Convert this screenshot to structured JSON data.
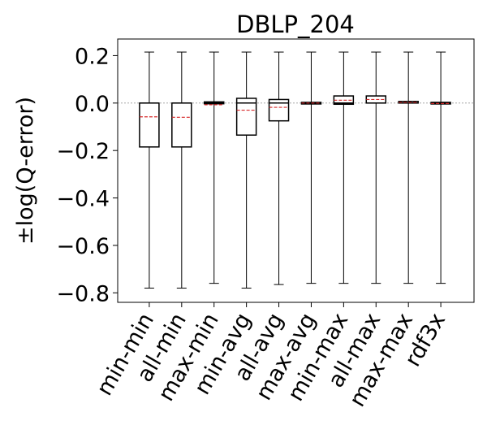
{
  "chart_data": {
    "type": "box",
    "title": "DBLP_204",
    "xlabel": "",
    "ylabel": "±log(Q-error)",
    "ylim": [
      -0.84,
      0.27
    ],
    "yticks": [
      0.2,
      0.0,
      -0.2,
      -0.4,
      -0.6,
      -0.8
    ],
    "ytick_labels": [
      "0.2",
      "0.0",
      "−0.2",
      "−0.4",
      "−0.6",
      "−0.8"
    ],
    "reference_line": 0.0,
    "grid": false,
    "categories": [
      "min-min",
      "all-min",
      "max-min",
      "min-avg",
      "all-avg",
      "max-avg",
      "min-max",
      "all-max",
      "max-max",
      "rdf3x"
    ],
    "boxes": [
      {
        "category": "min-min",
        "whisker_low": -0.78,
        "q1": -0.185,
        "median": -0.0,
        "q3": 0.0,
        "mean": -0.058,
        "whisker_high": 0.215
      },
      {
        "category": "all-min",
        "whisker_low": -0.78,
        "q1": -0.185,
        "median": -0.0,
        "q3": 0.0,
        "mean": -0.06,
        "whisker_high": 0.215
      },
      {
        "category": "max-min",
        "whisker_low": -0.76,
        "q1": -0.003,
        "median": 0.0,
        "q3": 0.005,
        "mean": -0.007,
        "whisker_high": 0.215
      },
      {
        "category": "min-avg",
        "whisker_low": -0.78,
        "q1": -0.135,
        "median": 0.0,
        "q3": 0.02,
        "mean": -0.03,
        "whisker_high": 0.215
      },
      {
        "category": "all-avg",
        "whisker_low": -0.765,
        "q1": -0.075,
        "median": 0.0,
        "q3": 0.015,
        "mean": -0.018,
        "whisker_high": 0.215
      },
      {
        "category": "max-avg",
        "whisker_low": -0.76,
        "q1": -0.002,
        "median": 0.0,
        "q3": 0.003,
        "mean": 0.0,
        "whisker_high": 0.215
      },
      {
        "category": "min-max",
        "whisker_low": -0.76,
        "q1": -0.005,
        "median": 0.0,
        "q3": 0.03,
        "mean": 0.012,
        "whisker_high": 0.215
      },
      {
        "category": "all-max",
        "whisker_low": -0.76,
        "q1": 0.0,
        "median": 0.0,
        "q3": 0.03,
        "mean": 0.015,
        "whisker_high": 0.215
      },
      {
        "category": "max-max",
        "whisker_low": -0.76,
        "q1": 0.0,
        "median": 0.0,
        "q3": 0.007,
        "mean": 0.003,
        "whisker_high": 0.215
      },
      {
        "category": "rdf3x",
        "whisker_low": -0.76,
        "q1": -0.002,
        "median": 0.0,
        "q3": 0.003,
        "mean": -0.002,
        "whisker_high": 0.215
      }
    ],
    "colors": {
      "box": "#000000",
      "mean_line": "#d62728",
      "reference_line": "#999999"
    }
  }
}
